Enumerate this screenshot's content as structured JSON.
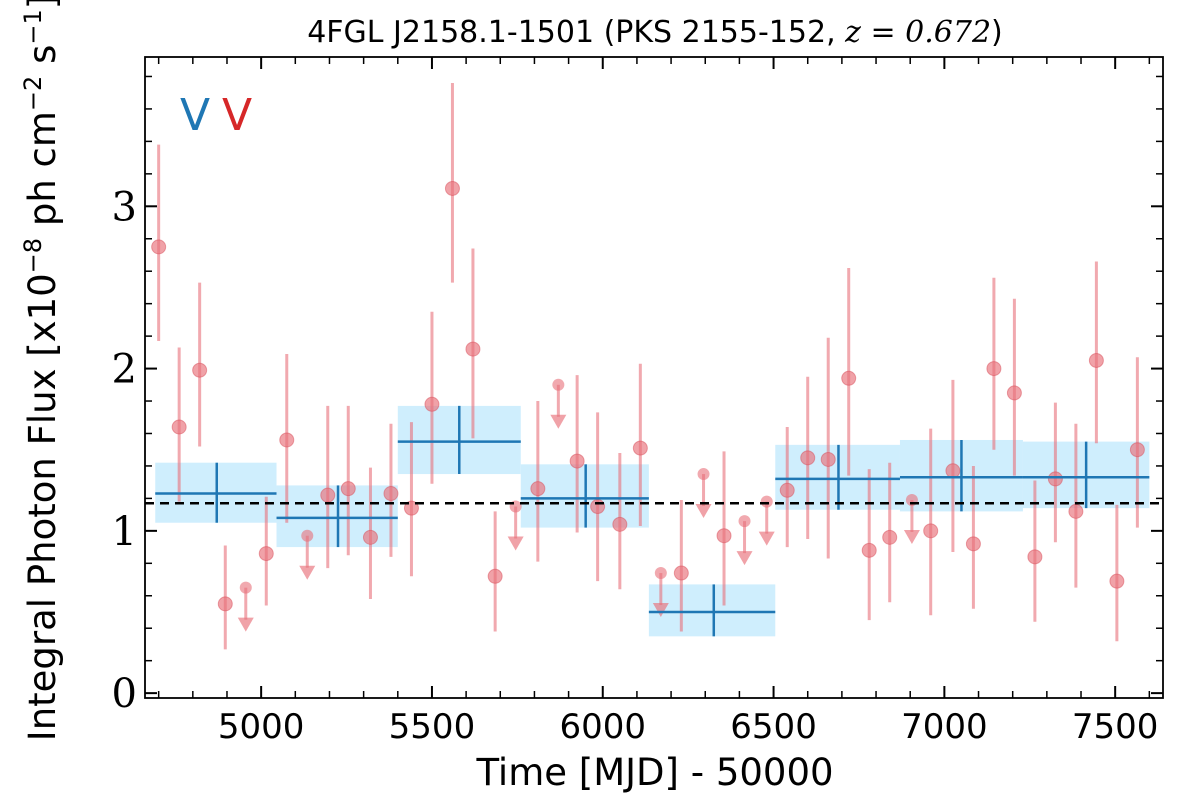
{
  "chart_data": {
    "type": "scatter",
    "title": {
      "text": "4FGL J2158.1-1501 (PKS 2155-152, ",
      "math_var": "z",
      "math_eq": " = 0.672",
      "close": ")"
    },
    "xlabel": "Time [MJD] - 50000",
    "ylabel": {
      "part1": "Integral Photon Flux [x10",
      "exp1": "−8",
      "part2": " ph cm",
      "exp2": "−2",
      "part3": " s",
      "exp3": "−1",
      "part4": "]"
    },
    "xlim": [
      4660,
      7640
    ],
    "ylim": [
      -0.03,
      3.92
    ],
    "x_ticks_major": [
      5000,
      5500,
      6000,
      6500,
      7000,
      7500
    ],
    "x_tick_labels": [
      "5000",
      "5500",
      "6000",
      "6500",
      "7000",
      "7500"
    ],
    "x_minor_step": 100,
    "y_ticks_major": [
      0,
      1,
      2,
      3
    ],
    "y_tick_labels": [
      "0",
      "1",
      "2",
      "3"
    ],
    "y_minor_step": 0.2,
    "grid": false,
    "markers": [
      {
        "label": "V",
        "color": "#1f77b4"
      },
      {
        "label": "V",
        "color": "#d62728"
      }
    ],
    "reference_line": {
      "y": 1.17,
      "style": "dashed",
      "color": "#000000"
    },
    "series": [
      {
        "kind": "points",
        "color": "#e8707a",
        "points": [
          {
            "x": 4700,
            "y": 2.75,
            "lo": 2.17,
            "hi": 3.38
          },
          {
            "x": 4760,
            "y": 1.64,
            "lo": 1.18,
            "hi": 2.13
          },
          {
            "x": 4820,
            "y": 1.99,
            "lo": 1.52,
            "hi": 2.53
          },
          {
            "x": 4895,
            "y": 0.55,
            "lo": 0.27,
            "hi": 0.91
          },
          {
            "x": 5015,
            "y": 0.86,
            "lo": 0.54,
            "hi": 1.21
          },
          {
            "x": 5075,
            "y": 1.56,
            "lo": 1.05,
            "hi": 2.09
          },
          {
            "x": 5195,
            "y": 1.22,
            "lo": 0.77,
            "hi": 1.77
          },
          {
            "x": 5255,
            "y": 1.26,
            "lo": 0.85,
            "hi": 1.77
          },
          {
            "x": 5320,
            "y": 0.96,
            "lo": 0.58,
            "hi": 1.39
          },
          {
            "x": 5380,
            "y": 1.23,
            "lo": 0.84,
            "hi": 1.66
          },
          {
            "x": 5440,
            "y": 1.14,
            "lo": 0.72,
            "hi": 1.67
          },
          {
            "x": 5500,
            "y": 1.78,
            "lo": 1.29,
            "hi": 2.35
          },
          {
            "x": 5560,
            "y": 3.11,
            "lo": 2.53,
            "hi": 3.76
          },
          {
            "x": 5620,
            "y": 2.12,
            "lo": 1.57,
            "hi": 2.74
          },
          {
            "x": 5685,
            "y": 0.72,
            "lo": 0.38,
            "hi": 1.12
          },
          {
            "x": 5810,
            "y": 1.26,
            "lo": 0.81,
            "hi": 1.8
          },
          {
            "x": 5925,
            "y": 1.43,
            "lo": 0.99,
            "hi": 1.96
          },
          {
            "x": 5985,
            "y": 1.15,
            "lo": 0.69,
            "hi": 1.73
          },
          {
            "x": 6050,
            "y": 1.04,
            "lo": 0.64,
            "hi": 1.48
          },
          {
            "x": 6110,
            "y": 1.51,
            "lo": 1.03,
            "hi": 2.03
          },
          {
            "x": 6230,
            "y": 0.74,
            "lo": 0.38,
            "hi": 1.19
          },
          {
            "x": 6355,
            "y": 0.97,
            "lo": 0.54,
            "hi": 1.49
          },
          {
            "x": 6540,
            "y": 1.25,
            "lo": 0.9,
            "hi": 1.64
          },
          {
            "x": 6600,
            "y": 1.45,
            "lo": 0.95,
            "hi": 1.95
          },
          {
            "x": 6660,
            "y": 1.44,
            "lo": 0.83,
            "hi": 2.19
          },
          {
            "x": 6720,
            "y": 1.94,
            "lo": 1.34,
            "hi": 2.62
          },
          {
            "x": 6780,
            "y": 0.88,
            "lo": 0.45,
            "hi": 1.38
          },
          {
            "x": 6840,
            "y": 0.96,
            "lo": 0.56,
            "hi": 1.42
          },
          {
            "x": 6960,
            "y": 1.0,
            "lo": 0.48,
            "hi": 1.63
          },
          {
            "x": 7025,
            "y": 1.37,
            "lo": 0.87,
            "hi": 1.93
          },
          {
            "x": 7085,
            "y": 0.92,
            "lo": 0.52,
            "hi": 1.4
          },
          {
            "x": 7145,
            "y": 2.0,
            "lo": 1.5,
            "hi": 2.56
          },
          {
            "x": 7205,
            "y": 1.85,
            "lo": 1.34,
            "hi": 2.43
          },
          {
            "x": 7265,
            "y": 0.84,
            "lo": 0.44,
            "hi": 1.31
          },
          {
            "x": 7325,
            "y": 1.32,
            "lo": 0.93,
            "hi": 1.79
          },
          {
            "x": 7385,
            "y": 1.12,
            "lo": 0.65,
            "hi": 1.66
          },
          {
            "x": 7445,
            "y": 2.05,
            "lo": 1.54,
            "hi": 2.66
          },
          {
            "x": 7505,
            "y": 0.69,
            "lo": 0.32,
            "hi": 1.16
          },
          {
            "x": 7565,
            "y": 1.5,
            "lo": 1.02,
            "hi": 2.07
          }
        ]
      },
      {
        "kind": "upper_limits",
        "color": "#e8707a",
        "points": [
          {
            "x": 4955,
            "y": 0.65
          },
          {
            "x": 5135,
            "y": 0.97
          },
          {
            "x": 5745,
            "y": 1.15
          },
          {
            "x": 5870,
            "y": 1.9
          },
          {
            "x": 6170,
            "y": 0.74
          },
          {
            "x": 6295,
            "y": 1.35
          },
          {
            "x": 6415,
            "y": 1.06
          },
          {
            "x": 6480,
            "y": 1.18
          },
          {
            "x": 6905,
            "y": 1.19
          }
        ]
      },
      {
        "kind": "bins",
        "color": "#1f77b4",
        "band_color": "#cfeefd",
        "bins": [
          {
            "x0": 4690,
            "x1": 5045,
            "xc": 4870,
            "y": 1.23,
            "lo": 1.05,
            "hi": 1.42
          },
          {
            "x0": 5045,
            "x1": 5400,
            "xc": 5225,
            "y": 1.08,
            "lo": 0.9,
            "hi": 1.28
          },
          {
            "x0": 5400,
            "x1": 5760,
            "xc": 5580,
            "y": 1.55,
            "lo": 1.35,
            "hi": 1.77
          },
          {
            "x0": 5760,
            "x1": 6135,
            "xc": 5950,
            "y": 1.2,
            "lo": 1.02,
            "hi": 1.41
          },
          {
            "x0": 6135,
            "x1": 6505,
            "xc": 6325,
            "y": 0.5,
            "lo": 0.35,
            "hi": 0.67
          },
          {
            "x0": 6505,
            "x1": 6870,
            "xc": 6690,
            "y": 1.32,
            "lo": 1.13,
            "hi": 1.53
          },
          {
            "x0": 6870,
            "x1": 7230,
            "xc": 7050,
            "y": 1.33,
            "lo": 1.12,
            "hi": 1.56
          },
          {
            "x0": 7230,
            "x1": 7600,
            "xc": 7415,
            "y": 1.33,
            "lo": 1.14,
            "hi": 1.55
          }
        ]
      }
    ]
  }
}
